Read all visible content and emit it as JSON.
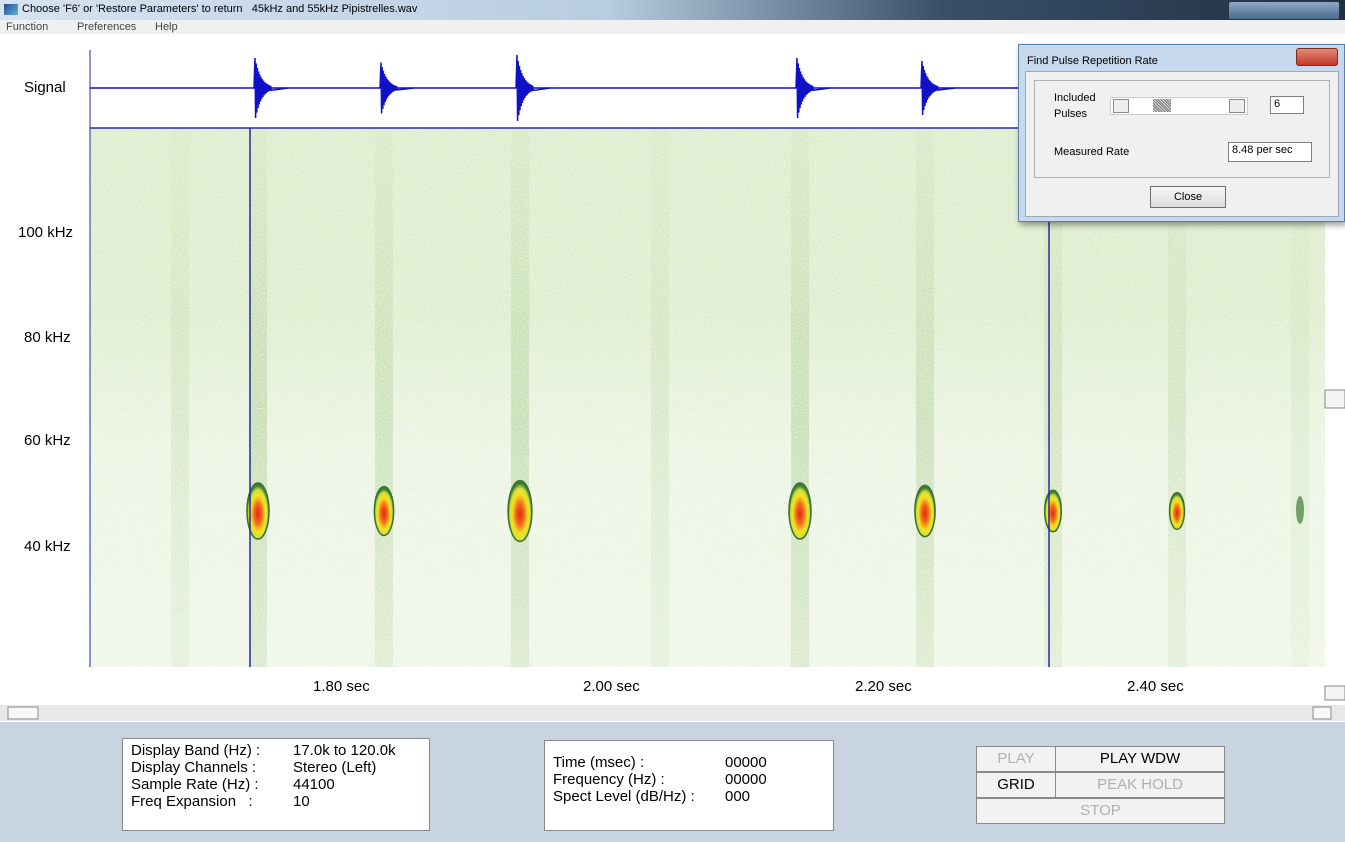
{
  "window": {
    "title": "Choose 'F6' or 'Restore Parameters' to return   45kHz and 55kHz Pipistrelles.wav"
  },
  "menu": [
    "Function",
    "Preferences",
    "Help"
  ],
  "signal_label": "Signal",
  "spectrogram": {
    "frequency_labels": [
      "100 kHz",
      "80 kHz",
      "60 kHz",
      "40 kHz"
    ],
    "time_labels": [
      "1.80 sec",
      "2.00 sec",
      "2.20 sec",
      "2.40 sec"
    ]
  },
  "dialog": {
    "title": "Find Pulse Repetition Rate",
    "included_pulses_label": "Included Pulses",
    "included_pulses_value": "6",
    "measured_rate_label": "Measured Rate",
    "measured_rate_value": "8.48 per sec",
    "close_button": "Close"
  },
  "display_info": {
    "rows": [
      [
        "Display Band (Hz) :",
        "17.0k to 120.0k"
      ],
      [
        "Display Channels :",
        "Stereo (Left)"
      ],
      [
        "Sample Rate (Hz) :",
        "44100"
      ],
      [
        "Freq Expansion   :",
        "10"
      ]
    ]
  },
  "cursor_info": {
    "rows": [
      [
        "Time (msec) :",
        "00000"
      ],
      [
        "Frequency (Hz) :",
        "00000"
      ],
      [
        "Spect Level (dB/Hz) :",
        "000"
      ]
    ]
  },
  "buttons": {
    "play": "PLAY",
    "play_wdw": "PLAY WDW",
    "grid": "GRID",
    "peak_hold": "PEAK HOLD",
    "stop": "STOP"
  }
}
